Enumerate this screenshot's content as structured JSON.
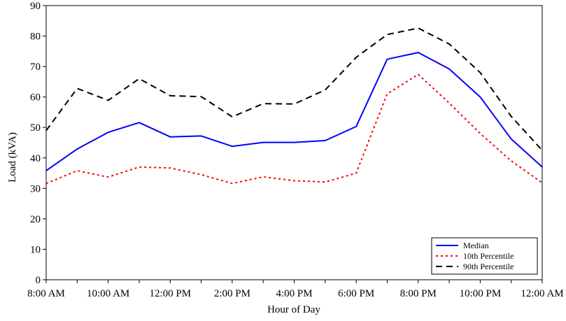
{
  "chart_data": {
    "type": "line",
    "title": "",
    "xlabel": "Hour of Day",
    "ylabel": "Load (kVA)",
    "ylim": [
      0,
      90
    ],
    "yticks": [
      0,
      10,
      20,
      30,
      40,
      50,
      60,
      70,
      80,
      90
    ],
    "xlim": [
      8,
      24
    ],
    "xticks": [
      {
        "hour": 8,
        "label": "8:00 AM"
      },
      {
        "hour": 10,
        "label": "10:00 AM"
      },
      {
        "hour": 12,
        "label": "12:00 PM"
      },
      {
        "hour": 14,
        "label": "2:00 PM"
      },
      {
        "hour": 16,
        "label": "4:00 PM"
      },
      {
        "hour": 18,
        "label": "6:00 PM"
      },
      {
        "hour": 20,
        "label": "8:00 PM"
      },
      {
        "hour": 22,
        "label": "10:00 PM"
      },
      {
        "hour": 24,
        "label": "12:00 AM"
      }
    ],
    "x": [
      8,
      9,
      10,
      11,
      12,
      13,
      14,
      15,
      16,
      17,
      18,
      19,
      20,
      21,
      22,
      23,
      24
    ],
    "series": [
      {
        "name": "Median",
        "color": "#0000ff",
        "dash": "solid",
        "values": [
          35.8,
          42.9,
          48.4,
          51.6,
          46.9,
          47.2,
          43.8,
          45.1,
          45.1,
          45.7,
          50.3,
          72.4,
          74.6,
          69.2,
          60.0,
          46.2,
          37.0
        ]
      },
      {
        "name": "10th Percentile",
        "color": "#ff0000",
        "dash": "dotted",
        "values": [
          31.6,
          35.8,
          33.7,
          37.0,
          36.7,
          34.5,
          31.6,
          33.8,
          32.5,
          32.1,
          35.0,
          61.0,
          67.4,
          58.0,
          48.0,
          39.0,
          31.8
        ]
      },
      {
        "name": "90th Percentile",
        "color": "#000000",
        "dash": "dashed",
        "values": [
          49.0,
          62.8,
          58.9,
          66.0,
          60.4,
          60.1,
          53.5,
          57.8,
          57.7,
          62.3,
          73.0,
          80.5,
          82.6,
          77.4,
          68.0,
          53.6,
          42.5
        ]
      }
    ],
    "grid": false,
    "legend_position": "bottom-right"
  }
}
